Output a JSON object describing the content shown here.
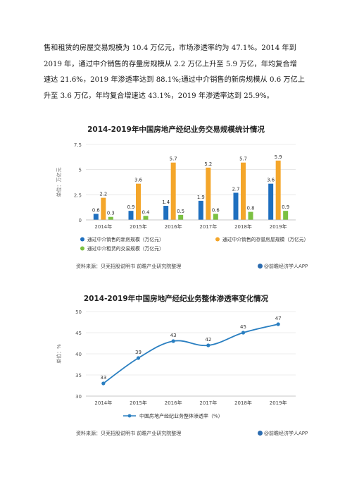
{
  "paragraph": {
    "lines": [
      "售和租赁的房屋交易规模为 10.4 万亿元，市场渗透率约为 47.1%。2014 年到",
      "2019 年，通过中介销售的存量房规模从 2.2 万亿上升至 5.9 万亿，年均复合增",
      "速达 21.6%，2019 年渗透率达到 88.1%;通过中介销售的新房规模从 0.6 万亿上",
      "升至 3.6 万亿，年均复合增速达 43.1%，2019 年渗透率达到 25.9%。"
    ]
  },
  "chart1": {
    "footer": {
      "source": "资料来源：贝壳招股说明书 前瞻产业研究院整理",
      "brand": "@前瞻经济学人APP"
    }
  },
  "chart2": {
    "footer": {
      "source": "资料来源：贝壳招股说明书 前瞻产业研究院整理",
      "brand": "@前瞻经济学人APP"
    }
  },
  "chart_data": [
    {
      "type": "bar",
      "title": "2014-2019年中国房地产经纪业务交易规模统计情况",
      "ylabel": "单位：万亿元",
      "categories": [
        "2014年",
        "2015年",
        "2016年",
        "2017年",
        "2018年",
        "2019年"
      ],
      "ylim": [
        0,
        7.5
      ],
      "yticks": [
        "0",
        "2.5",
        "5",
        "7.5"
      ],
      "grid": true,
      "legend_position": "bottom",
      "series": [
        {
          "name": "通过中介销售的新房规模（万亿元）",
          "color": "#1e6fbf",
          "values": [
            0.6,
            0.9,
            1.4,
            1.9,
            2.7,
            3.6
          ]
        },
        {
          "name": "通过中介销售的存量房屋规模（万亿元）",
          "color": "#f4a62a",
          "values": [
            2.2,
            3.6,
            5.7,
            5.2,
            5.7,
            5.9
          ]
        },
        {
          "name": "通过中介租赁的交易规模（万亿元）",
          "color": "#7cc142",
          "values": [
            0.3,
            0.4,
            0.5,
            0.6,
            0.8,
            0.9
          ]
        }
      ]
    },
    {
      "type": "line",
      "title": "2014-2019年中国房地产经纪业务整体渗透率变化情况",
      "ylabel": "单位：%",
      "categories": [
        "2014年",
        "2015年",
        "2016年",
        "2017年",
        "2018年",
        "2019年"
      ],
      "ylim": [
        30,
        50
      ],
      "yticks": [
        "30",
        "35",
        "40",
        "45",
        "50"
      ],
      "grid": true,
      "legend_position": "bottom",
      "series": [
        {
          "name": "中国房地产经纪业务整体渗透率（%）",
          "color": "#2a7fc1",
          "values": [
            33,
            39,
            43,
            42,
            45,
            47
          ]
        }
      ]
    }
  ]
}
